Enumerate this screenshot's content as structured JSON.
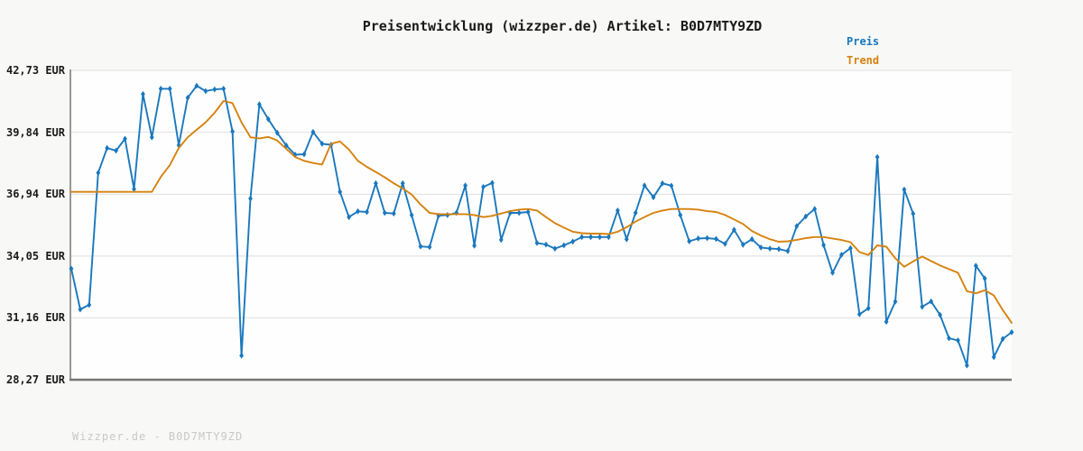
{
  "title": "Preisentwicklung (wizzper.de) Artikel: B0D7MTY9ZD",
  "legend": {
    "price_label": "Preis",
    "trend_label": "Trend"
  },
  "watermark": "Wizzper.de - B0D7MTY9ZD",
  "colors": {
    "price": "#1a78be",
    "trend": "#d6820e",
    "grid": "#e4e4e4",
    "left_spine": "#8c8c8c",
    "bottom_spine": "#757575",
    "plot_bg": "#fefefe",
    "outer_bg": "#f8f8f7"
  },
  "chart_data": {
    "type": "line",
    "title": "Preisentwicklung (wizzper.de) Artikel: B0D7MTY9ZD",
    "xlabel": "",
    "ylabel": "EUR",
    "ylim": [
      28.27,
      42.73
    ],
    "grid": "horizontal",
    "legend_position": "top-right",
    "x_tick_labels_visible": false,
    "y_ticks": [
      {
        "value": 42.73,
        "label": "42,73 EUR"
      },
      {
        "value": 39.84,
        "label": "39,84 EUR"
      },
      {
        "value": 36.94,
        "label": "36,94 EUR"
      },
      {
        "value": 34.05,
        "label": "34,05 EUR"
      },
      {
        "value": 31.16,
        "label": "31,16 EUR"
      },
      {
        "value": 28.27,
        "label": "28,27 EUR"
      }
    ],
    "series": [
      {
        "name": "Preis",
        "color": "#1a78be",
        "marker": "diamond",
        "values": [
          33.46,
          31.56,
          31.77,
          37.94,
          39.1,
          38.98,
          39.53,
          37.18,
          41.62,
          39.6,
          41.87,
          41.87,
          39.23,
          41.45,
          42.01,
          41.76,
          41.84,
          41.87,
          39.87,
          29.4,
          36.74,
          41.14,
          40.45,
          39.81,
          39.22,
          38.79,
          38.81,
          39.85,
          39.3,
          39.25,
          37.05,
          35.87,
          36.14,
          36.11,
          37.45,
          36.07,
          36.04,
          37.45,
          35.97,
          34.5,
          34.47,
          35.94,
          35.97,
          36.07,
          37.35,
          34.54,
          37.28,
          37.47,
          34.81,
          36.07,
          36.07,
          36.11,
          34.66,
          34.59,
          34.4,
          34.55,
          34.73,
          34.94,
          34.94,
          34.94,
          34.94,
          36.18,
          34.84,
          36.07,
          37.35,
          36.8,
          37.45,
          37.34,
          35.97,
          34.74,
          34.87,
          34.89,
          34.85,
          34.62,
          35.28,
          34.58,
          34.84,
          34.45,
          34.4,
          34.38,
          34.28,
          35.45,
          35.9,
          36.25,
          34.56,
          33.27,
          34.11,
          34.42,
          31.33,
          31.61,
          38.68,
          30.98,
          31.92,
          37.16,
          36.03,
          31.68,
          31.93,
          31.3,
          30.21,
          30.11,
          28.94,
          33.6,
          33.0,
          29.33,
          30.18,
          30.49
        ]
      },
      {
        "name": "Trend",
        "color": "#d6820e",
        "marker": "none",
        "values": [
          37.05,
          37.05,
          37.05,
          37.05,
          37.05,
          37.05,
          37.05,
          37.05,
          37.05,
          37.05,
          37.75,
          38.3,
          39.1,
          39.6,
          39.95,
          40.3,
          40.75,
          41.3,
          41.2,
          40.3,
          39.6,
          39.55,
          39.62,
          39.45,
          39.06,
          38.68,
          38.5,
          38.4,
          38.33,
          39.3,
          39.41,
          39.03,
          38.5,
          38.22,
          37.98,
          37.73,
          37.45,
          37.21,
          36.93,
          36.46,
          36.07,
          36.01,
          36.01,
          36.01,
          36.01,
          35.97,
          35.87,
          35.93,
          36.04,
          36.15,
          36.22,
          36.25,
          36.18,
          35.87,
          35.59,
          35.38,
          35.19,
          35.12,
          35.1,
          35.1,
          35.08,
          35.19,
          35.4,
          35.66,
          35.87,
          36.07,
          36.18,
          36.25,
          36.25,
          36.25,
          36.22,
          36.15,
          36.11,
          35.97,
          35.76,
          35.55,
          35.22,
          35.01,
          34.84,
          34.72,
          34.74,
          34.81,
          34.89,
          34.94,
          34.94,
          34.87,
          34.8,
          34.7,
          34.24,
          34.1,
          34.55,
          34.49,
          33.95,
          33.55,
          33.8,
          34.03,
          33.82,
          33.61,
          33.44,
          33.27,
          32.41,
          32.31,
          32.45,
          32.21,
          31.53,
          30.93
        ]
      }
    ]
  }
}
